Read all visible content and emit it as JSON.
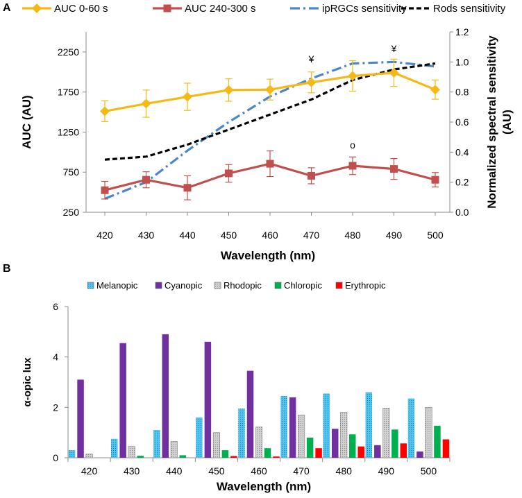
{
  "chart_data": [
    {
      "panel": "A",
      "type": "line",
      "x": [
        420,
        430,
        440,
        450,
        460,
        470,
        480,
        490,
        500
      ],
      "xlabel": "Wavelength (nm)",
      "ylabel": "AUC  (AU)",
      "ylabel_right": "Normalized spectral sensitivity (AU)",
      "ylim": [
        250,
        2500
      ],
      "yticks": [
        250,
        750,
        1250,
        1750,
        2250
      ],
      "ylim_right": [
        0.0,
        1.2
      ],
      "yticks_right": [
        "0.0",
        "0.2",
        "0.4",
        "0.6",
        "0.8",
        "1.0",
        "1.2"
      ],
      "series": [
        {
          "name": "AUC 0-60 s",
          "axis": "left",
          "color": "#F5B915",
          "style": "solid",
          "marker": "diamond",
          "values": [
            1510,
            1605,
            1690,
            1775,
            1780,
            1870,
            1950,
            1990,
            1780
          ],
          "errors": [
            130,
            170,
            170,
            140,
            130,
            130,
            190,
            170,
            120
          ]
        },
        {
          "name": "AUC 240-300 s",
          "axis": "left",
          "color": "#C0504D",
          "style": "solid",
          "marker": "square",
          "values": [
            525,
            655,
            555,
            735,
            855,
            705,
            830,
            790,
            655
          ],
          "errors": [
            110,
            100,
            150,
            110,
            160,
            100,
            110,
            130,
            90
          ]
        },
        {
          "name": "ipRGCs sensitivity",
          "axis": "right",
          "color": "#4A86C8",
          "style": "dashdot",
          "values": [
            0.09,
            0.2,
            0.41,
            0.6,
            0.77,
            0.89,
            0.99,
            1.0,
            0.97
          ]
        },
        {
          "name": "Rods sensitivity",
          "axis": "right",
          "color": "#000000",
          "style": "dashed",
          "values": [
            0.35,
            0.37,
            0.45,
            0.55,
            0.65,
            0.75,
            0.88,
            0.95,
            0.99
          ]
        }
      ],
      "annotations": [
        {
          "text": "¥",
          "x": 470
        },
        {
          "text": "¥",
          "x": 490
        },
        {
          "text": "o",
          "x": 480
        }
      ]
    },
    {
      "panel": "B",
      "type": "bar",
      "categories": [
        "420",
        "430",
        "440",
        "450",
        "460",
        "470",
        "480",
        "490",
        "500"
      ],
      "xlabel": "Wavelength (nm)",
      "ylabel": "α-opic lux",
      "ylim": [
        0,
        6
      ],
      "yticks": [
        0,
        2,
        4,
        6
      ],
      "series": [
        {
          "name": "Melanopic",
          "color": "#4FC3F0",
          "values": [
            0.3,
            0.75,
            1.1,
            1.6,
            1.95,
            2.45,
            2.55,
            2.6,
            2.35
          ]
        },
        {
          "name": "Cyanopic",
          "color": "#7030A0",
          "values": [
            3.1,
            4.55,
            4.9,
            4.6,
            3.45,
            2.4,
            1.15,
            0.5,
            0.25
          ]
        },
        {
          "name": "Rhodopic",
          "color": "#D0D0D0",
          "values": [
            0.15,
            0.45,
            0.65,
            1.0,
            1.22,
            1.7,
            1.8,
            1.97,
            2.0
          ]
        },
        {
          "name": "Chloropic",
          "color": "#00B050",
          "values": [
            0.0,
            0.08,
            0.1,
            0.3,
            0.38,
            0.8,
            0.93,
            1.12,
            1.27
          ]
        },
        {
          "name": "Erythropic",
          "color": "#FF0000",
          "values": [
            0.0,
            0.0,
            0.0,
            0.07,
            0.05,
            0.38,
            0.45,
            0.57,
            0.73
          ]
        }
      ]
    }
  ],
  "labels": {
    "panel_a": "A",
    "panel_b": "B"
  }
}
